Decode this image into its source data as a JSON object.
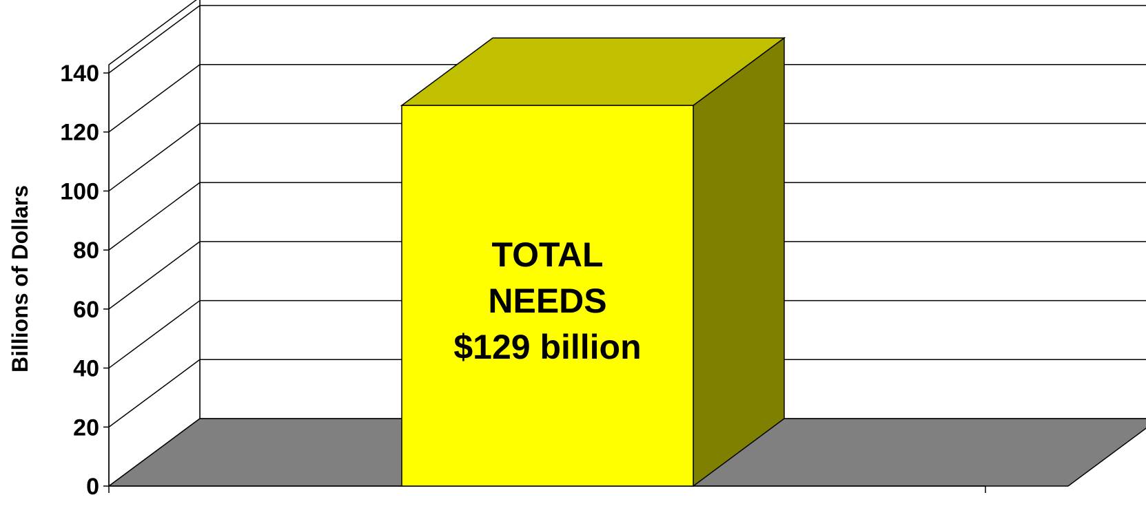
{
  "chart_data": {
    "type": "bar",
    "style": "3d",
    "categories": [
      ""
    ],
    "values": [
      129
    ],
    "title": "",
    "xlabel": "",
    "ylabel": "Billions of Dollars",
    "ylim": [
      0,
      140
    ],
    "yticks": [
      "0",
      "20",
      "40",
      "60",
      "80",
      "100",
      "120",
      "140"
    ],
    "grid": true,
    "legend": "none",
    "bar_label_lines": [
      "TOTAL",
      "NEEDS",
      "$129 billion"
    ]
  },
  "colors": {
    "bar_front": "#ffff00",
    "bar_top": "#c0c000",
    "bar_side": "#808000",
    "floor": "#808080",
    "walls": "#ffffff",
    "lines": "#000000"
  }
}
